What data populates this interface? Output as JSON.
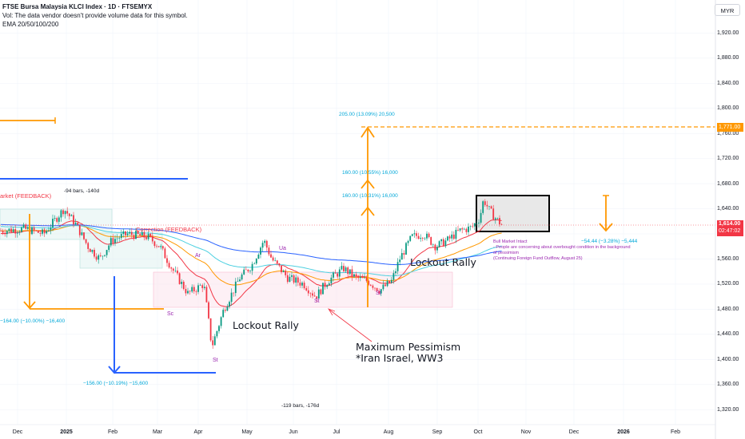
{
  "header": {
    "title": "FTSE Bursa Malaysia KLCI Index · 1D · FTSEMYX",
    "vol_note": "Vol: The data vendor doesn't provide volume data for this symbol.",
    "indicator": "EMA 20/50/100/200"
  },
  "currency": "MYR",
  "price_tag": {
    "value": "1,614.00",
    "countdown": "02:47:02",
    "color": "#f23645"
  },
  "target_tag": {
    "value": "1,771.00",
    "color": "#ff9800"
  },
  "annotations": {
    "market_feedback": "arket (FEEDBACK)",
    "correction_feedback": "Correction (FEEDBACK)",
    "bars_140": "-94 bars, -140d",
    "bars_176": "-119 bars, -176d",
    "measure_205": "205.00 (13.09%) 20,500",
    "measure_160a": "160.00 (10.55%) 16,000",
    "measure_160b": "160.00 (10.31%) 16,000",
    "measure_164": "−164.00 (−10.00%) −16,400",
    "measure_156": "−156.00 (−10.19%) −15,600",
    "measure_54": "−54.44 (−3.28%) −5,444",
    "lockout_rally_1": "Lockout Rally",
    "lockout_rally_2": "Lockout Rally",
    "max_pessimism_1": "Maximum Pessimism",
    "max_pessimism_2": "*Iran Israel, WW3",
    "bull_1": "Bull Market Intact",
    "bull_2": "- People are concerning about overbought condition in the background",
    "bull_3": "of pessimism",
    "bull_4": "(Continuing Foreign Fund Outflow, August 25)",
    "wyckoff_sc": "Sc",
    "wyckoff_st1": "St",
    "wyckoff_ar": "Ar",
    "wyckoff_ua": "Ua",
    "wyckoff_st2": "St",
    "wyckoff_st3": "St"
  },
  "colors": {
    "up": "#089981",
    "down": "#f23645",
    "orange": "#ff9800",
    "blue": "#2962ff",
    "cyan": "#00bcd4",
    "ema20": "#f23645",
    "ema50": "#ff9800",
    "ema100": "#4dd0e1",
    "ema200": "#2962ff"
  },
  "chart_data": {
    "type": "candlestick",
    "title": "FTSE Bursa Malaysia KLCI Index · 1D · FTSEMYX",
    "interval": "1D",
    "currency": "MYR",
    "ylim": [
      1300,
      1980
    ],
    "y_ticks": [
      1320,
      1360,
      1400,
      1440,
      1480,
      1520,
      1560,
      1600,
      1640,
      1680,
      1720,
      1760,
      1800,
      1840,
      1880,
      1920
    ],
    "y_tick_labels": [
      "1,320.00",
      "1,360.00",
      "1,400.00",
      "1,440.00",
      "1,480.00",
      "1,520.00",
      "1,560.00",
      "1,600.00",
      "1,640.00",
      "1,680.00",
      "1,720.00",
      "1,760.00",
      "1,800.00",
      "1,840.00",
      "1,880.00",
      "1,920.00"
    ],
    "x_tick_labels": [
      "Dec",
      "2025",
      "Feb",
      "Mar",
      "Apr",
      "May",
      "Jun",
      "Jul",
      "Aug",
      "Sep",
      "Oct",
      "Nov",
      "Dec",
      "2026",
      "Feb"
    ],
    "last_price": 1614.0,
    "target_price": 1771.0,
    "series": [
      {
        "name": "EMA 20"
      },
      {
        "name": "EMA 50"
      },
      {
        "name": "EMA 100"
      },
      {
        "name": "EMA 200"
      }
    ],
    "price_path": [
      [
        0,
        1605
      ],
      [
        30,
        1608
      ],
      [
        55,
        1600
      ],
      [
        80,
        1640
      ],
      [
        95,
        1615
      ],
      [
        110,
        1580
      ],
      [
        125,
        1560
      ],
      [
        140,
        1590
      ],
      [
        160,
        1600
      ],
      [
        185,
        1595
      ],
      [
        200,
        1580
      ],
      [
        215,
        1545
      ],
      [
        235,
        1505
      ],
      [
        255,
        1520
      ],
      [
        265,
        1420
      ],
      [
        280,
        1480
      ],
      [
        300,
        1530
      ],
      [
        315,
        1550
      ],
      [
        330,
        1590
      ],
      [
        340,
        1560
      ],
      [
        360,
        1530
      ],
      [
        380,
        1520
      ],
      [
        395,
        1500
      ],
      [
        410,
        1525
      ],
      [
        430,
        1545
      ],
      [
        445,
        1530
      ],
      [
        460,
        1525
      ],
      [
        475,
        1510
      ],
      [
        490,
        1525
      ],
      [
        500,
        1560
      ],
      [
        515,
        1595
      ],
      [
        530,
        1600
      ],
      [
        545,
        1580
      ],
      [
        560,
        1590
      ],
      [
        575,
        1605
      ],
      [
        590,
        1610
      ],
      [
        600,
        1625
      ],
      [
        605,
        1655
      ],
      [
        612,
        1638
      ],
      [
        620,
        1625
      ],
      [
        628,
        1614
      ]
    ]
  }
}
